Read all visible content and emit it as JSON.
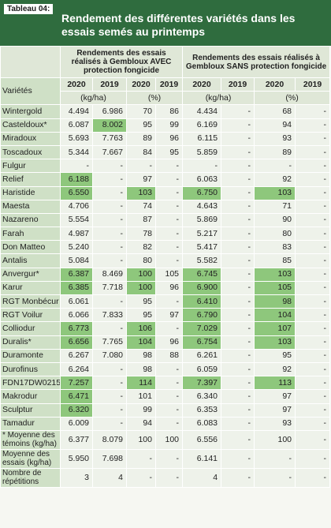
{
  "tag": "Tableau 04:",
  "title": "Rendement des différentes variétés dans les essais semés au printemps",
  "group_avec": "Rendements des essais réalisés à Gembloux AVEC protection fongicide",
  "group_sans": "Rendements des essais réalisés à Gembloux SANS protection fongicide",
  "varietes_label": "Variétés",
  "years": [
    "2020",
    "2019",
    "2020",
    "2019",
    "2020",
    "2019",
    "2020",
    "2019"
  ],
  "unit_kg": "(kg/ha)",
  "unit_pct": "(%)",
  "rows": [
    {
      "name": "Wintergold",
      "v": [
        "4.494",
        "6.986",
        "70",
        "86",
        "4.434",
        "-",
        "68",
        "-"
      ],
      "hl": []
    },
    {
      "name": "Casteldoux*",
      "v": [
        "6.087",
        "8.002",
        "95",
        "99",
        "6.169",
        "-",
        "94",
        "-"
      ],
      "hl": [
        1
      ]
    },
    {
      "name": "Miradoux",
      "v": [
        "5.693",
        "7.763",
        "89",
        "96",
        "6.115",
        "-",
        "93",
        "-"
      ],
      "hl": []
    },
    {
      "name": "Toscadoux",
      "v": [
        "5.344",
        "7.667",
        "84",
        "95",
        "5.859",
        "-",
        "89",
        "-"
      ],
      "hl": []
    },
    {
      "name": "Fulgur",
      "v": [
        "-",
        "-",
        "-",
        "-",
        "-",
        "-",
        "-",
        "-"
      ],
      "hl": []
    },
    {
      "name": "Relief",
      "v": [
        "6.188",
        "-",
        "97",
        "-",
        "6.063",
        "-",
        "92",
        "-"
      ],
      "hl": [
        0
      ]
    },
    {
      "name": "Haristide",
      "v": [
        "6.550",
        "-",
        "103",
        "-",
        "6.750",
        "-",
        "103",
        "-"
      ],
      "hl": [
        0,
        2,
        4,
        6
      ]
    },
    {
      "name": "Maesta",
      "v": [
        "4.706",
        "-",
        "74",
        "-",
        "4.643",
        "-",
        "71",
        "-"
      ],
      "hl": []
    },
    {
      "name": "Nazareno",
      "v": [
        "5.554",
        "-",
        "87",
        "-",
        "5.869",
        "-",
        "90",
        "-"
      ],
      "hl": []
    },
    {
      "name": "Farah",
      "v": [
        "4.987",
        "-",
        "78",
        "-",
        "5.217",
        "-",
        "80",
        "-"
      ],
      "hl": []
    },
    {
      "name": "Don Matteo",
      "v": [
        "5.240",
        "-",
        "82",
        "-",
        "5.417",
        "-",
        "83",
        "-"
      ],
      "hl": []
    },
    {
      "name": "Antalis",
      "v": [
        "5.084",
        "-",
        "80",
        "-",
        "5.582",
        "-",
        "85",
        "-"
      ],
      "hl": []
    },
    {
      "name": "Anvergur*",
      "v": [
        "6.387",
        "8.469",
        "100",
        "105",
        "6.745",
        "-",
        "103",
        "-"
      ],
      "hl": [
        0,
        2,
        4,
        6
      ]
    },
    {
      "name": "Karur",
      "v": [
        "6.385",
        "7.718",
        "100",
        "96",
        "6.900",
        "-",
        "105",
        "-"
      ],
      "hl": [
        0,
        2,
        4,
        6
      ]
    },
    {
      "name": "RGT Monbécur",
      "v": [
        "6.061",
        "-",
        "95",
        "-",
        "6.410",
        "-",
        "98",
        "-"
      ],
      "hl": [
        4,
        6
      ]
    },
    {
      "name": "RGT Voilur",
      "v": [
        "6.066",
        "7.833",
        "95",
        "97",
        "6.790",
        "-",
        "104",
        "-"
      ],
      "hl": [
        4,
        6
      ]
    },
    {
      "name": "Colliodur",
      "v": [
        "6.773",
        "-",
        "106",
        "-",
        "7.029",
        "-",
        "107",
        "-"
      ],
      "hl": [
        0,
        2,
        4,
        6
      ]
    },
    {
      "name": "Duralis*",
      "v": [
        "6.656",
        "7.765",
        "104",
        "96",
        "6.754",
        "-",
        "103",
        "-"
      ],
      "hl": [
        0,
        2,
        4,
        6
      ]
    },
    {
      "name": "Duramonte",
      "v": [
        "6.267",
        "7.080",
        "98",
        "88",
        "6.261",
        "-",
        "95",
        "-"
      ],
      "hl": []
    },
    {
      "name": "Durofinus",
      "v": [
        "6.264",
        "-",
        "98",
        "-",
        "6.059",
        "-",
        "92",
        "-"
      ],
      "hl": []
    },
    {
      "name": "FDN17DW0215",
      "v": [
        "7.257",
        "-",
        "114",
        "-",
        "7.397",
        "-",
        "113",
        "-"
      ],
      "hl": [
        0,
        2,
        4,
        6
      ]
    },
    {
      "name": "Makrodur",
      "v": [
        "6.471",
        "-",
        "101",
        "-",
        "6.340",
        "-",
        "97",
        "-"
      ],
      "hl": [
        0
      ]
    },
    {
      "name": "Sculptur",
      "v": [
        "6.320",
        "-",
        "99",
        "-",
        "6.353",
        "-",
        "97",
        "-"
      ],
      "hl": [
        0
      ]
    },
    {
      "name": "Tamadur",
      "v": [
        "6.009",
        "-",
        "94",
        "-",
        "6.083",
        "-",
        "93",
        "-"
      ],
      "hl": []
    }
  ],
  "footer": [
    {
      "name": "* Moyenne des témoins (kg/ha)",
      "v": [
        "6.377",
        "8.079",
        "100",
        "100",
        "6.556",
        "-",
        "100",
        "-"
      ]
    },
    {
      "name": "Moyenne des essais (kg/ha)",
      "v": [
        "5.950",
        "7.698",
        "-",
        "-",
        "6.141",
        "-",
        "-",
        "-"
      ]
    },
    {
      "name": "Nombre de répétitions",
      "v": [
        "3",
        "4",
        "-",
        "-",
        "4",
        "-",
        "-",
        "-"
      ]
    }
  ],
  "colors": {
    "header_green": "#2f6c3e",
    "highlight": "#8ec77c",
    "variety_bg": "#cfe0c6",
    "cell_bg": "#eef2ea"
  }
}
